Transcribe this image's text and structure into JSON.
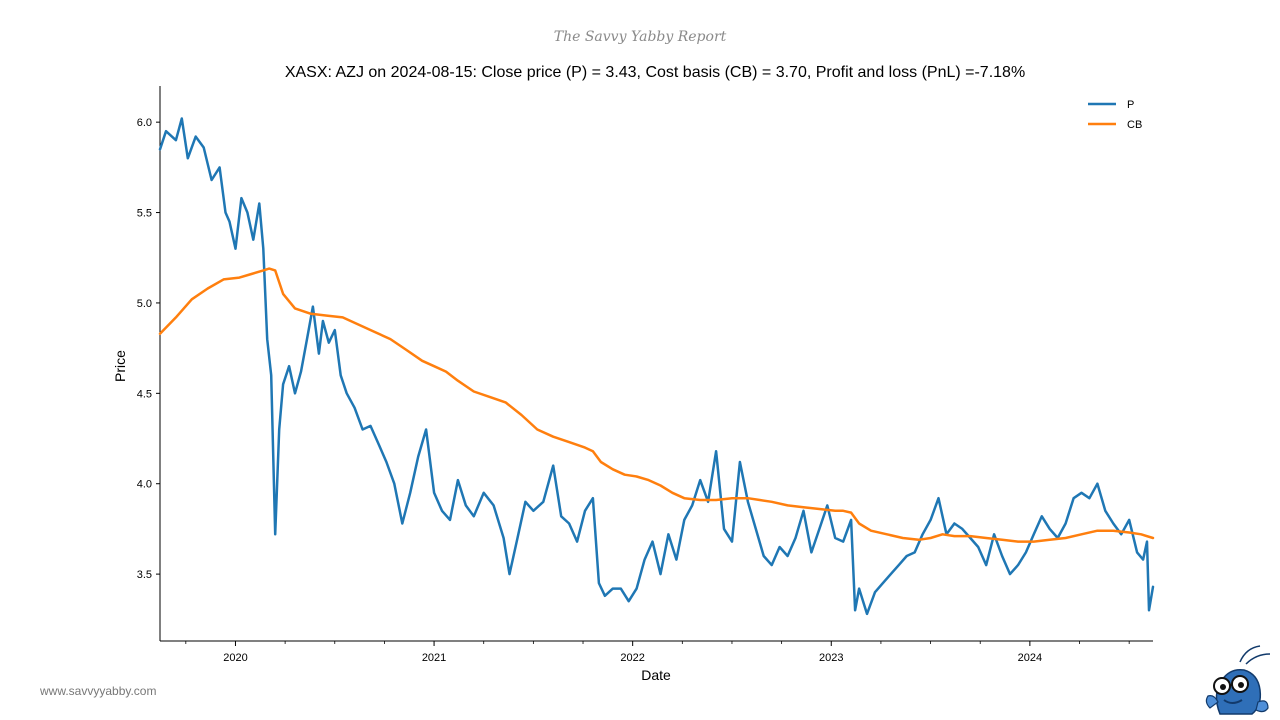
{
  "brand": "The Savvy Yabby Report",
  "footer_url": "www.savvyyabby.com",
  "mascot_icon": "yabby-mascot-icon",
  "chart_data": {
    "type": "line",
    "title": "XASX: AZJ on 2024-08-15: Close price (P) = 3.43, Cost basis (CB) = 3.70, Profit and loss (PnL) =-7.18%",
    "xlabel": "Date",
    "ylabel": "Price",
    "xlim": [
      2019.62,
      2024.62
    ],
    "ylim": [
      3.13,
      6.2
    ],
    "x_ticks": [
      2020,
      2021,
      2022,
      2023,
      2024
    ],
    "x_tick_labels": [
      "2020",
      "2021",
      "2022",
      "2023",
      "2024"
    ],
    "y_ticks": [
      3.5,
      4.0,
      4.5,
      5.0,
      5.5,
      6.0
    ],
    "y_tick_labels": [
      "3.5",
      "4.0",
      "4.5",
      "5.0",
      "5.5",
      "6.0"
    ],
    "legend_position": "top-right",
    "series": [
      {
        "name": "P",
        "color": "#1f77b4",
        "x": [
          2019.62,
          2019.65,
          2019.7,
          2019.73,
          2019.76,
          2019.8,
          2019.84,
          2019.88,
          2019.92,
          2019.95,
          2019.97,
          2020.0,
          2020.03,
          2020.06,
          2020.09,
          2020.12,
          2020.14,
          2020.16,
          2020.18,
          2020.2,
          2020.22,
          2020.24,
          2020.27,
          2020.3,
          2020.33,
          2020.36,
          2020.39,
          2020.42,
          2020.44,
          2020.47,
          2020.5,
          2020.53,
          2020.56,
          2020.6,
          2020.64,
          2020.68,
          2020.72,
          2020.76,
          2020.8,
          2020.84,
          2020.88,
          2020.92,
          2020.96,
          2021.0,
          2021.04,
          2021.08,
          2021.12,
          2021.16,
          2021.2,
          2021.25,
          2021.3,
          2021.35,
          2021.38,
          2021.42,
          2021.46,
          2021.5,
          2021.55,
          2021.6,
          2021.64,
          2021.68,
          2021.72,
          2021.76,
          2021.8,
          2021.83,
          2021.86,
          2021.9,
          2021.94,
          2021.98,
          2022.02,
          2022.06,
          2022.1,
          2022.14,
          2022.18,
          2022.22,
          2022.26,
          2022.3,
          2022.34,
          2022.38,
          2022.42,
          2022.46,
          2022.5,
          2022.54,
          2022.58,
          2022.62,
          2022.66,
          2022.7,
          2022.74,
          2022.78,
          2022.82,
          2022.86,
          2022.9,
          2022.94,
          2022.98,
          2023.02,
          2023.06,
          2023.1,
          2023.12,
          2023.14,
          2023.18,
          2023.22,
          2023.26,
          2023.3,
          2023.34,
          2023.38,
          2023.42,
          2023.46,
          2023.5,
          2023.54,
          2023.58,
          2023.62,
          2023.66,
          2023.7,
          2023.74,
          2023.78,
          2023.82,
          2023.86,
          2023.9,
          2023.94,
          2023.98,
          2024.02,
          2024.06,
          2024.1,
          2024.14,
          2024.18,
          2024.22,
          2024.26,
          2024.3,
          2024.34,
          2024.38,
          2024.42,
          2024.46,
          2024.5,
          2024.54,
          2024.57,
          2024.59,
          2024.6,
          2024.62
        ],
        "y": [
          5.85,
          5.95,
          5.9,
          6.02,
          5.8,
          5.92,
          5.86,
          5.68,
          5.75,
          5.5,
          5.45,
          5.3,
          5.58,
          5.5,
          5.35,
          5.55,
          5.3,
          4.8,
          4.6,
          3.72,
          4.3,
          4.55,
          4.65,
          4.5,
          4.62,
          4.8,
          4.98,
          4.72,
          4.9,
          4.78,
          4.85,
          4.6,
          4.5,
          4.42,
          4.3,
          4.32,
          4.22,
          4.12,
          4.0,
          3.78,
          3.95,
          4.15,
          4.3,
          3.95,
          3.85,
          3.8,
          4.02,
          3.88,
          3.82,
          3.95,
          3.88,
          3.7,
          3.5,
          3.7,
          3.9,
          3.85,
          3.9,
          4.1,
          3.82,
          3.78,
          3.68,
          3.85,
          3.92,
          3.45,
          3.38,
          3.42,
          3.42,
          3.35,
          3.42,
          3.58,
          3.68,
          3.5,
          3.72,
          3.58,
          3.8,
          3.88,
          4.02,
          3.9,
          4.18,
          3.75,
          3.68,
          4.12,
          3.9,
          3.75,
          3.6,
          3.55,
          3.65,
          3.6,
          3.7,
          3.85,
          3.62,
          3.75,
          3.88,
          3.7,
          3.68,
          3.8,
          3.3,
          3.42,
          3.28,
          3.4,
          3.45,
          3.5,
          3.55,
          3.6,
          3.62,
          3.72,
          3.8,
          3.92,
          3.72,
          3.78,
          3.75,
          3.7,
          3.65,
          3.55,
          3.72,
          3.6,
          3.5,
          3.55,
          3.62,
          3.72,
          3.82,
          3.75,
          3.7,
          3.78,
          3.92,
          3.95,
          3.92,
          4.0,
          3.85,
          3.78,
          3.72,
          3.8,
          3.62,
          3.58,
          3.68,
          3.3,
          3.43
        ]
      },
      {
        "name": "CB",
        "color": "#ff7f0e",
        "x": [
          2019.62,
          2019.7,
          2019.78,
          2019.86,
          2019.94,
          2020.02,
          2020.08,
          2020.14,
          2020.17,
          2020.2,
          2020.24,
          2020.3,
          2020.38,
          2020.46,
          2020.54,
          2020.62,
          2020.7,
          2020.78,
          2020.86,
          2020.94,
          2021.0,
          2021.06,
          2021.12,
          2021.2,
          2021.28,
          2021.36,
          2021.44,
          2021.52,
          2021.6,
          2021.68,
          2021.76,
          2021.8,
          2021.84,
          2021.9,
          2021.96,
          2022.02,
          2022.08,
          2022.14,
          2022.2,
          2022.26,
          2022.34,
          2022.42,
          2022.5,
          2022.58,
          2022.64,
          2022.7,
          2022.78,
          2022.86,
          2022.94,
          2023.02,
          2023.06,
          2023.1,
          2023.14,
          2023.2,
          2023.28,
          2023.36,
          2023.44,
          2023.5,
          2023.56,
          2023.62,
          2023.7,
          2023.78,
          2023.86,
          2023.94,
          2024.02,
          2024.1,
          2024.18,
          2024.26,
          2024.34,
          2024.42,
          2024.5,
          2024.56,
          2024.62
        ],
        "y": [
          4.83,
          4.92,
          5.02,
          5.08,
          5.13,
          5.14,
          5.16,
          5.18,
          5.19,
          5.18,
          5.05,
          4.97,
          4.94,
          4.93,
          4.92,
          4.88,
          4.84,
          4.8,
          4.74,
          4.68,
          4.65,
          4.62,
          4.57,
          4.51,
          4.48,
          4.45,
          4.38,
          4.3,
          4.26,
          4.23,
          4.2,
          4.18,
          4.12,
          4.08,
          4.05,
          4.04,
          4.02,
          3.99,
          3.95,
          3.92,
          3.91,
          3.91,
          3.92,
          3.92,
          3.91,
          3.9,
          3.88,
          3.87,
          3.86,
          3.85,
          3.85,
          3.84,
          3.78,
          3.74,
          3.72,
          3.7,
          3.69,
          3.7,
          3.72,
          3.71,
          3.71,
          3.7,
          3.69,
          3.68,
          3.68,
          3.69,
          3.7,
          3.72,
          3.74,
          3.74,
          3.73,
          3.72,
          3.7
        ]
      }
    ]
  }
}
